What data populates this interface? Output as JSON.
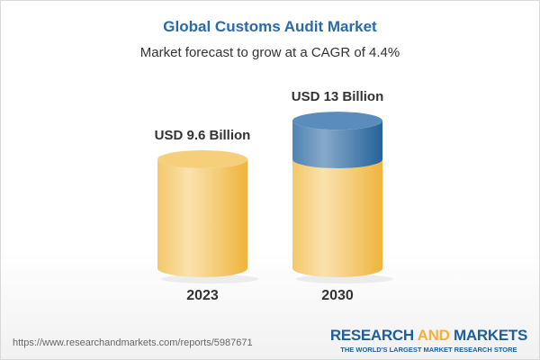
{
  "title": "Global Customs Audit Market",
  "subtitle": "Market forecast to grow at a CAGR of 4.4%",
  "chart_data": {
    "type": "bar",
    "style": "3d-cylinder",
    "categories": [
      "2023",
      "2030"
    ],
    "values": [
      9.6,
      13
    ],
    "unit": "USD Billion",
    "data_labels": [
      "USD 9.6 Billion",
      "USD 13 Billion"
    ],
    "colors": {
      "base": "#f2c35a",
      "growth": "#3e77a8"
    },
    "grid": false
  },
  "footer": {
    "url": "https://www.researchandmarkets.com/reports/5987671",
    "logo_research": "RESEARCH",
    "logo_and": "AND",
    "logo_markets": "MARKETS",
    "logo_tagline": "THE WORLD'S LARGEST MARKET RESEARCH STORE"
  }
}
